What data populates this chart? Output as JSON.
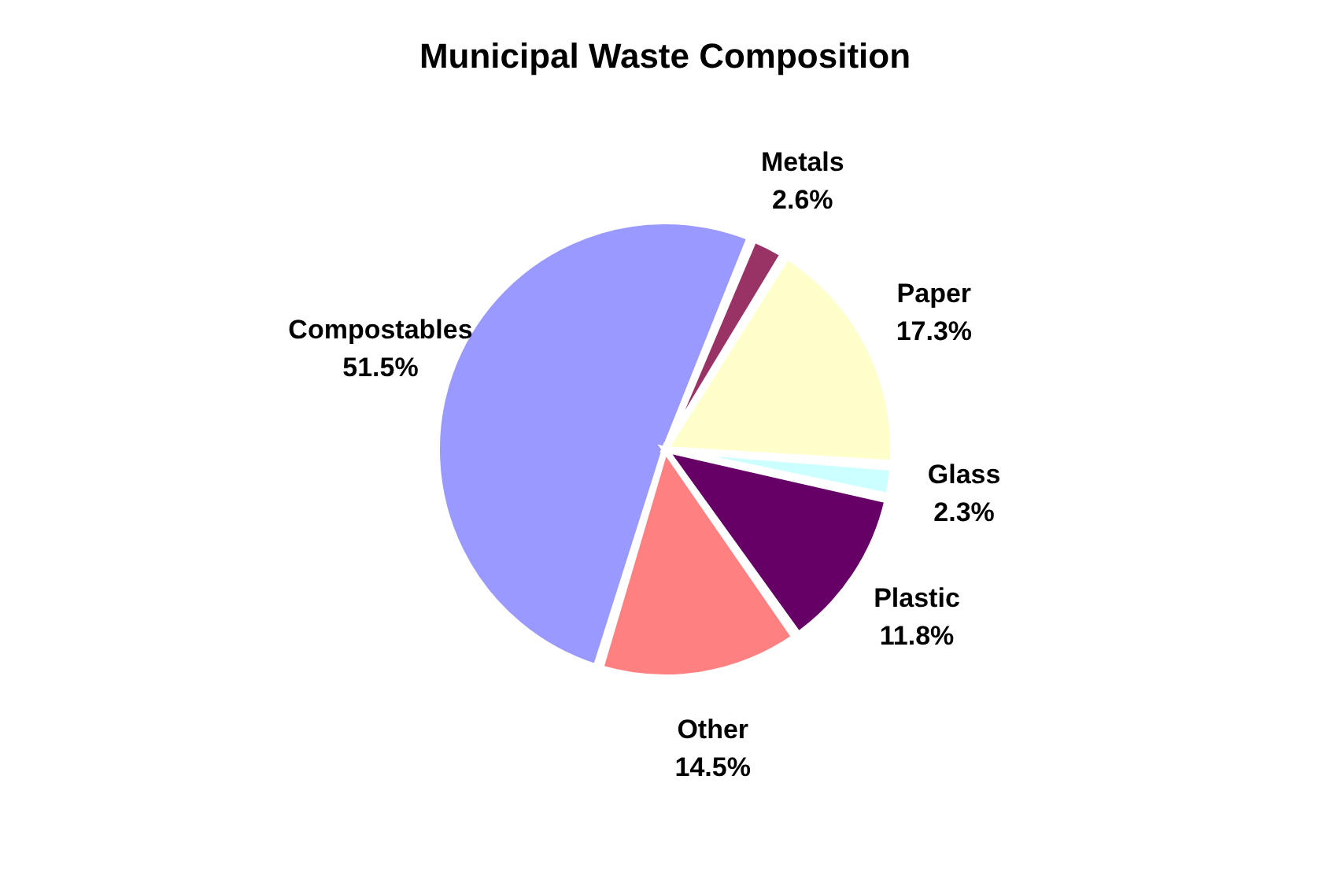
{
  "chart_data": {
    "type": "pie",
    "title": "Municipal Waste Composition",
    "categories": [
      "Compostables",
      "Metals",
      "Paper",
      "Glass",
      "Plastic",
      "Other"
    ],
    "values": [
      51.5,
      2.6,
      17.3,
      2.3,
      11.8,
      14.5
    ],
    "value_labels": [
      "51.5%",
      "2.6%",
      "17.3%",
      "2.3%",
      "11.8%",
      "14.5%"
    ],
    "colors": [
      "#9999ff",
      "#993366",
      "#ffffcc",
      "#ccffff",
      "#660066",
      "#ff8080"
    ],
    "legend": false
  }
}
